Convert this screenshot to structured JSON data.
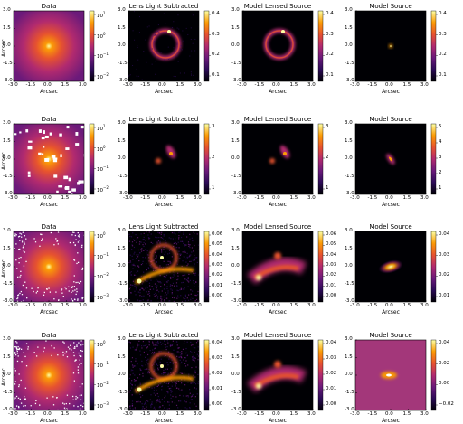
{
  "figure": {
    "panel_titles": [
      "Data",
      "Lens Light Subtracted",
      "Model Lensed Source",
      "Model Source"
    ],
    "axis_label": "Arcsec",
    "axis_ticks": [
      "-3.0",
      "-1.5",
      "0.0",
      "1.5",
      "3.0"
    ]
  },
  "colors": {
    "colormap_stops": [
      "#000004",
      "#2c0b57",
      "#6b1a7a",
      "#b12a6f",
      "#e6522f",
      "#fb9b06",
      "#fcffa4"
    ],
    "background": "#ffffff"
  },
  "chart_data": [
    {
      "type": "heatmap",
      "rows": [
        {
          "row": 1,
          "panels": [
            {
              "title": "Data",
              "colorbar_ticks": [
                "10^1",
                "10^0",
                "10^-1",
                "10^-2"
              ],
              "scale": "log",
              "content": "extended galaxy light",
              "masked": false
            },
            {
              "title": "Lens Light Subtracted",
              "colorbar_ticks": [
                "0.4",
                "0.3",
                "0.2",
                "0.1"
              ],
              "scale": "linear",
              "content": "einstein ring",
              "masked": false
            },
            {
              "title": "Model Lensed Source",
              "colorbar_ticks": [
                "0.4",
                "0.3",
                "0.2",
                "0.1"
              ],
              "scale": "linear",
              "content": "einstein ring",
              "masked": false
            },
            {
              "title": "Model Source",
              "colorbar_ticks": [
                "0.4",
                "0.3",
                "0.2",
                "0.1"
              ],
              "scale": "linear",
              "content": "compact source",
              "masked": false
            }
          ]
        },
        {
          "row": 2,
          "panels": [
            {
              "title": "Data",
              "colorbar_ticks": [
                "10^1",
                "10^0",
                "10^-1",
                "10^-2"
              ],
              "scale": "log",
              "content": "extended galaxy light with masked regions",
              "masked": true
            },
            {
              "title": "Lens Light Subtracted",
              "colorbar_ticks": [
                "3",
                "2",
                "1"
              ],
              "scale": "linear",
              "content": "double image",
              "masked": false
            },
            {
              "title": "Model Lensed Source",
              "colorbar_ticks": [
                "3",
                "2",
                "1"
              ],
              "scale": "linear",
              "content": "double image",
              "masked": false
            },
            {
              "title": "Model Source",
              "colorbar_ticks": [
                "5",
                "4",
                "3",
                "2",
                "1"
              ],
              "scale": "linear",
              "content": "elongated source",
              "masked": false
            }
          ]
        },
        {
          "row": 3,
          "panels": [
            {
              "title": "Data",
              "colorbar_ticks": [
                "10^0",
                "10^-1",
                "10^-2",
                "10^-3"
              ],
              "scale": "log",
              "content": "extended galaxy light, noisy edges",
              "masked": true
            },
            {
              "title": "Lens Light Subtracted",
              "colorbar_ticks": [
                "0.06",
                "0.05",
                "0.04",
                "0.03",
                "0.02",
                "0.01",
                "0.00"
              ],
              "scale": "linear",
              "content": "noisy arcs",
              "masked": false
            },
            {
              "title": "Model Lensed Source",
              "colorbar_ticks": [
                "0.06",
                "0.05",
                "0.04",
                "0.03",
                "0.02",
                "0.01",
                "0.00"
              ],
              "scale": "linear",
              "content": "broad arc",
              "masked": false
            },
            {
              "title": "Model Source",
              "colorbar_ticks": [
                "0.04",
                "0.03",
                "0.02",
                "0.01"
              ],
              "scale": "linear",
              "content": "elliptical source",
              "masked": false
            }
          ]
        },
        {
          "row": 4,
          "panels": [
            {
              "title": "Data",
              "colorbar_ticks": [
                "10^0",
                "10^-1",
                "10^-2",
                "10^-3"
              ],
              "scale": "log",
              "content": "extended galaxy light, noisy edges",
              "masked": true
            },
            {
              "title": "Lens Light Subtracted",
              "colorbar_ticks": [
                "0.04",
                "0.03",
                "0.02",
                "0.01",
                "0.00"
              ],
              "scale": "linear",
              "content": "noisy arcs",
              "masked": false
            },
            {
              "title": "Model Lensed Source",
              "colorbar_ticks": [
                "0.04",
                "0.03",
                "0.02",
                "0.01",
                "0.00"
              ],
              "scale": "linear",
              "content": "broad arc",
              "masked": false
            },
            {
              "title": "Model Source",
              "colorbar_ticks": [
                "0.04",
                "0.02",
                "0.00",
                "−0.02"
              ],
              "scale": "linear",
              "content": "compact source on offset background",
              "masked": false
            }
          ]
        }
      ],
      "xlabel": "Arcsec",
      "ylabel": "Arcsec",
      "xlim": [
        -3.0,
        3.0
      ],
      "ylim": [
        -3.0,
        3.0
      ],
      "grid": false
    }
  ]
}
